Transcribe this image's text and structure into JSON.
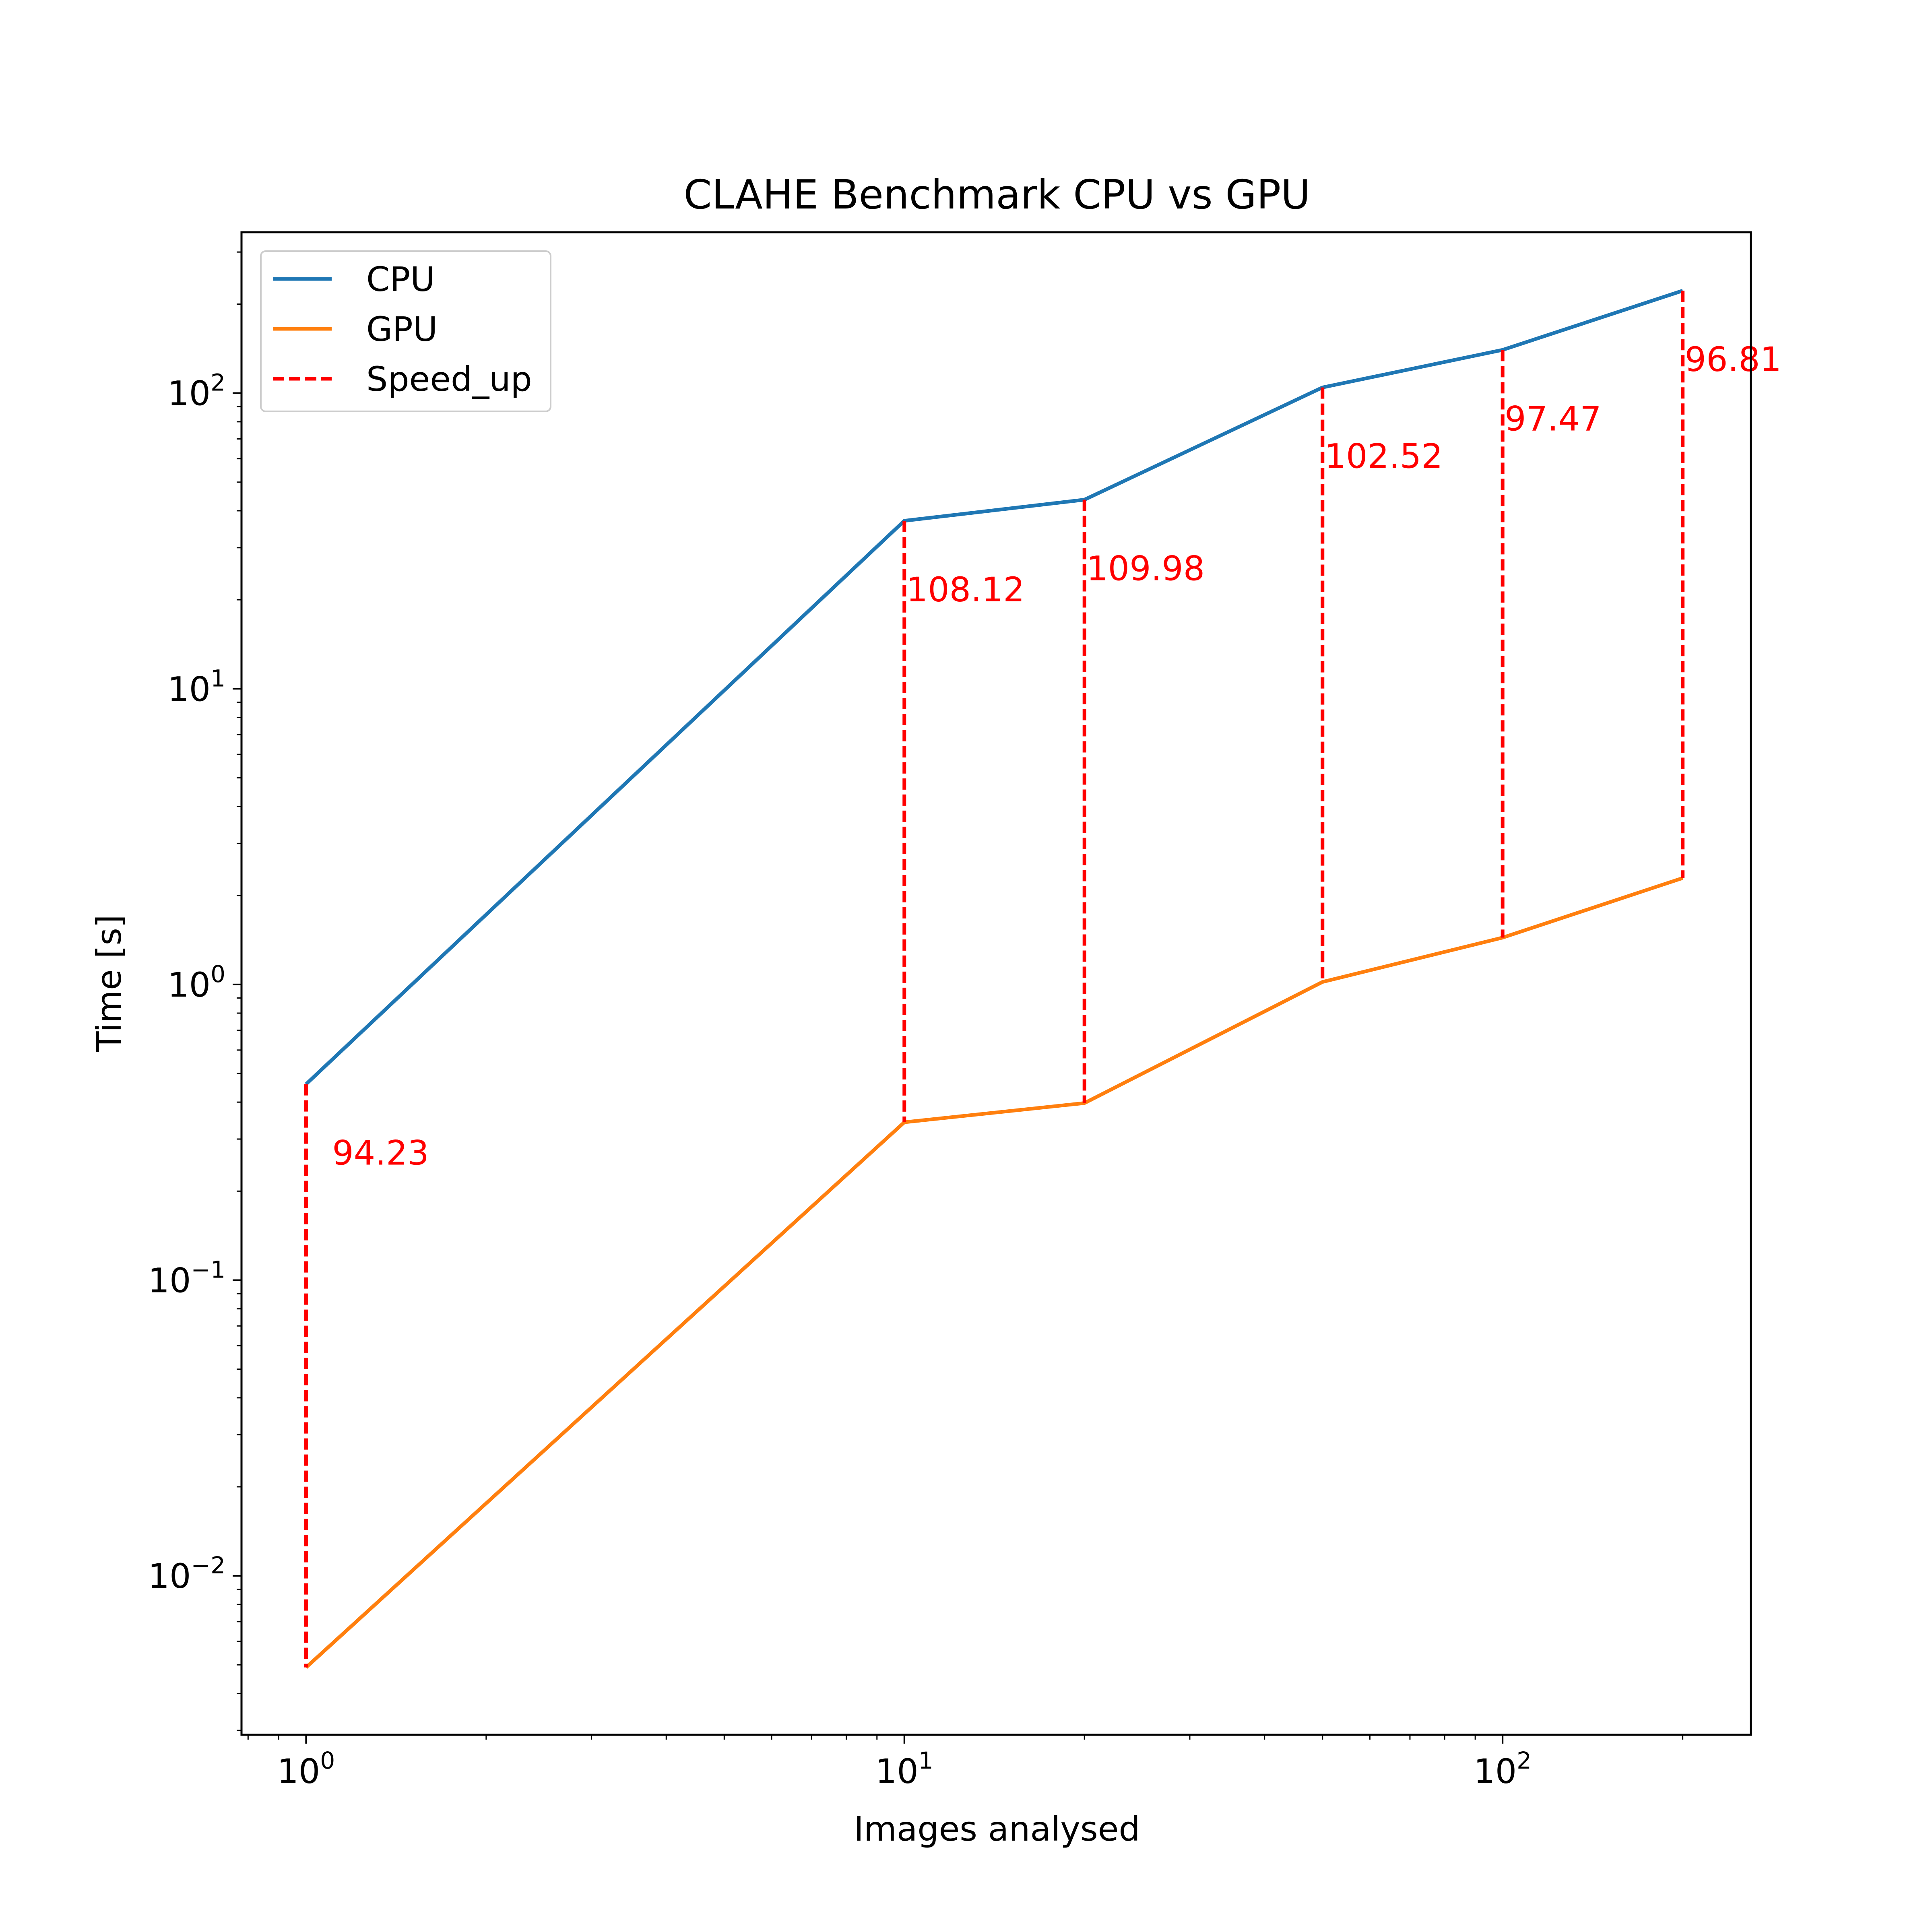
{
  "chart_data": {
    "type": "line",
    "title": "CLAHE Benchmark CPU vs GPU",
    "xlabel": "Images analysed",
    "ylabel": "Time [s]",
    "xscale": "log",
    "yscale": "log",
    "xlim": [
      0.78,
      260
    ],
    "ylim": [
      0.0029,
      350
    ],
    "x": [
      1,
      10,
      20,
      50,
      100,
      200
    ],
    "xticks": [
      {
        "value": 1,
        "base": "10",
        "exp": "0"
      },
      {
        "value": 10,
        "base": "10",
        "exp": "1"
      },
      {
        "value": 100,
        "base": "10",
        "exp": "2"
      }
    ],
    "yticks": [
      {
        "value": 0.01,
        "base": "10",
        "exp": "−2"
      },
      {
        "value": 0.1,
        "base": "10",
        "exp": "−1"
      },
      {
        "value": 1,
        "base": "10",
        "exp": "0"
      },
      {
        "value": 10,
        "base": "10",
        "exp": "1"
      },
      {
        "value": 100,
        "base": "10",
        "exp": "2"
      }
    ],
    "grid": false,
    "legend_position": "top-left",
    "series": [
      {
        "name": "CPU",
        "color": "#1f77b4",
        "values": [
          0.46,
          37.0,
          43.6,
          104.5,
          140.0,
          222.0
        ]
      },
      {
        "name": "GPU",
        "color": "#ff7f0e",
        "values": [
          0.0049,
          0.342,
          0.397,
          1.02,
          1.44,
          2.29
        ]
      }
    ],
    "speedup": {
      "name": "Speed_up",
      "color": "#ff0000",
      "labels": [
        "94.23",
        "108.12",
        "109.98",
        "102.52",
        "97.47",
        "96.81"
      ]
    }
  }
}
